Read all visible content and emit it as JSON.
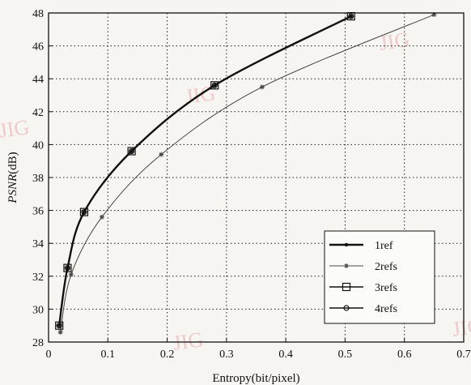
{
  "chart_data": {
    "type": "line",
    "xlabel": "Entropy(bit/pixel)",
    "ylabel_italic": "PSNR",
    "ylabel_unit": "(dB)",
    "xlim": [
      0,
      0.7
    ],
    "ylim": [
      28,
      48
    ],
    "xticks": [
      0,
      0.1,
      0.2,
      0.3,
      0.4,
      0.5,
      0.6,
      0.7
    ],
    "xtick_labels": [
      "0",
      "0.1",
      "0.2",
      "0.3",
      "0.4",
      "0.5",
      "0.6",
      "0.7"
    ],
    "yticks": [
      28,
      30,
      32,
      34,
      36,
      38,
      40,
      42,
      44,
      46,
      48
    ],
    "ytick_labels": [
      "28",
      "30",
      "32",
      "34",
      "36",
      "38",
      "40",
      "42",
      "44",
      "46",
      "48"
    ],
    "grid": true,
    "legend_position": "bottom-right",
    "series": [
      {
        "name": "1ref",
        "marker": "dot",
        "color": "#111111",
        "x": [
          0.018,
          0.032,
          0.06,
          0.14,
          0.28,
          0.51
        ],
        "y": [
          29.0,
          32.5,
          35.9,
          39.6,
          43.6,
          47.8
        ]
      },
      {
        "name": "2refs",
        "marker": "star",
        "color": "#444444",
        "x": [
          0.02,
          0.038,
          0.09,
          0.19,
          0.36,
          0.65
        ],
        "y": [
          28.6,
          32.1,
          35.6,
          39.4,
          43.5,
          47.9
        ]
      },
      {
        "name": "3refs",
        "marker": "square",
        "color": "#111111",
        "x": [
          0.018,
          0.032,
          0.06,
          0.14,
          0.28,
          0.51
        ],
        "y": [
          29.0,
          32.5,
          35.9,
          39.6,
          43.6,
          47.8
        ]
      },
      {
        "name": "4refs",
        "marker": "circle",
        "color": "#111111",
        "x": [
          0.018,
          0.032,
          0.06,
          0.14,
          0.28,
          0.51
        ],
        "y": [
          29.0,
          32.5,
          35.9,
          39.6,
          43.6,
          47.8
        ]
      }
    ]
  },
  "watermark": "JIG",
  "colors": {
    "background": "#f6f5f2",
    "grid": "#222222",
    "watermark": "#e9a8a8"
  }
}
